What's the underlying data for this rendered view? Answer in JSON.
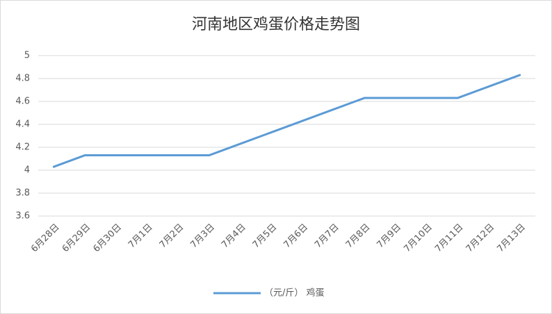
{
  "chart_data": {
    "type": "line",
    "title": "河南地区鸡蛋价格走势图",
    "categories": [
      "6月28日",
      "6月29日",
      "6月30日",
      "7月1日",
      "7月2日",
      "7月3日",
      "7月4日",
      "7月5日",
      "7月6日",
      "7月7日",
      "7月8日",
      "7月9日",
      "7月10日",
      "7月11日",
      "7月12日",
      "7月13日"
    ],
    "series": [
      {
        "name": "（元/斤） 鸡蛋",
        "color": "#5b9bd5",
        "values": [
          4.03,
          4.13,
          4.13,
          4.13,
          4.13,
          4.13,
          4.23,
          4.33,
          4.43,
          4.53,
          4.63,
          4.63,
          4.63,
          4.63,
          4.73,
          4.83
        ]
      }
    ],
    "ylim": [
      3.6,
      5
    ],
    "yticks": [
      3.6,
      3.8,
      4,
      4.2,
      4.4,
      4.6,
      4.8,
      5
    ],
    "grid": true,
    "legend": "bottom"
  }
}
